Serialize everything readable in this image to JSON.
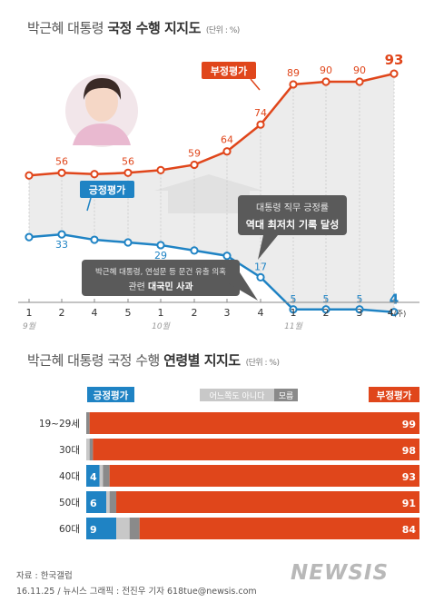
{
  "titles": {
    "top_pre": "박근혜 대통령 ",
    "top_bold": "국정 수행 지지도",
    "top_unit": "(단위 : %)",
    "bottom_pre": "박근혜 대통령 국정 수행 ",
    "bottom_bold": "연령별 지지도",
    "bottom_unit": "(단위 : %)"
  },
  "callouts": {
    "record_line1": "대통령 직무 긍정률",
    "record_line2": "역대 최저치 기록 달성",
    "apology_line1": "박근혜 대통령, 연설문 등 문건 유출 의혹",
    "apology_line2_pre": "관련 ",
    "apology_line2_bold": "대국민 사과"
  },
  "source": {
    "line1": "자료 : 한국갤럽",
    "line2": "16.11.25 / 뉴시스 그래픽 : 전진우 기자 618tue@newsis.com",
    "logo": "NEWSIS"
  },
  "colors": {
    "negative": "#e0461b",
    "positive": "#1f83c4",
    "neutral": "#c8c8c8",
    "unknown": "#8a8a8a",
    "callout": "#5a5a5a"
  },
  "chart_data": [
    {
      "type": "line",
      "x": [
        "1",
        "2",
        "4",
        "5",
        "1",
        "2",
        "3",
        "4",
        "1",
        "2",
        "3",
        "4(주)"
      ],
      "month_labels": [
        {
          "label": "9월",
          "at_index": 0
        },
        {
          "label": "10월",
          "at_index": 4
        },
        {
          "label": "11월",
          "at_index": 8
        }
      ],
      "series": [
        {
          "name": "부정평가",
          "color": "#e0461b",
          "values": [
            null,
            56,
            null,
            56,
            null,
            59,
            64,
            74,
            89,
            90,
            90,
            93
          ]
        },
        {
          "name": "긍정평가",
          "color": "#1f83c4",
          "values": [
            null,
            33,
            null,
            null,
            29,
            null,
            25,
            17,
            5,
            5,
            5,
            4
          ]
        }
      ],
      "labeled_points": {
        "부정평가": [
          1,
          3,
          5,
          6,
          7,
          8,
          9,
          10,
          11
        ],
        "긍정평가": [
          1,
          4,
          6,
          7,
          8,
          9,
          10,
          11
        ]
      },
      "ylim": [
        0,
        100
      ]
    },
    {
      "type": "bar",
      "stacked": true,
      "horizontal": true,
      "categories": [
        "19~29세",
        "30대",
        "40대",
        "50대",
        "60대"
      ],
      "series": [
        {
          "name": "긍정평가",
          "color": "#1f83c4",
          "values": [
            0,
            0,
            4,
            6,
            9
          ]
        },
        {
          "name": "어느쪽도 아니다",
          "color": "#c8c8c8",
          "values": [
            0,
            1,
            1,
            1,
            4
          ]
        },
        {
          "name": "모름",
          "color": "#8a8a8a",
          "values": [
            1,
            1,
            2,
            2,
            3
          ]
        },
        {
          "name": "부정평가",
          "color": "#e0461b",
          "values": [
            99,
            98,
            93,
            91,
            84
          ]
        }
      ],
      "labels": {
        "positive": [
          "",
          "",
          "4",
          "6",
          "9"
        ],
        "negative": [
          "99",
          "98",
          "93",
          "91",
          "84"
        ]
      },
      "legend": [
        "긍정평가",
        "어느쪽도 아니다",
        "모름",
        "부정평가"
      ]
    }
  ]
}
